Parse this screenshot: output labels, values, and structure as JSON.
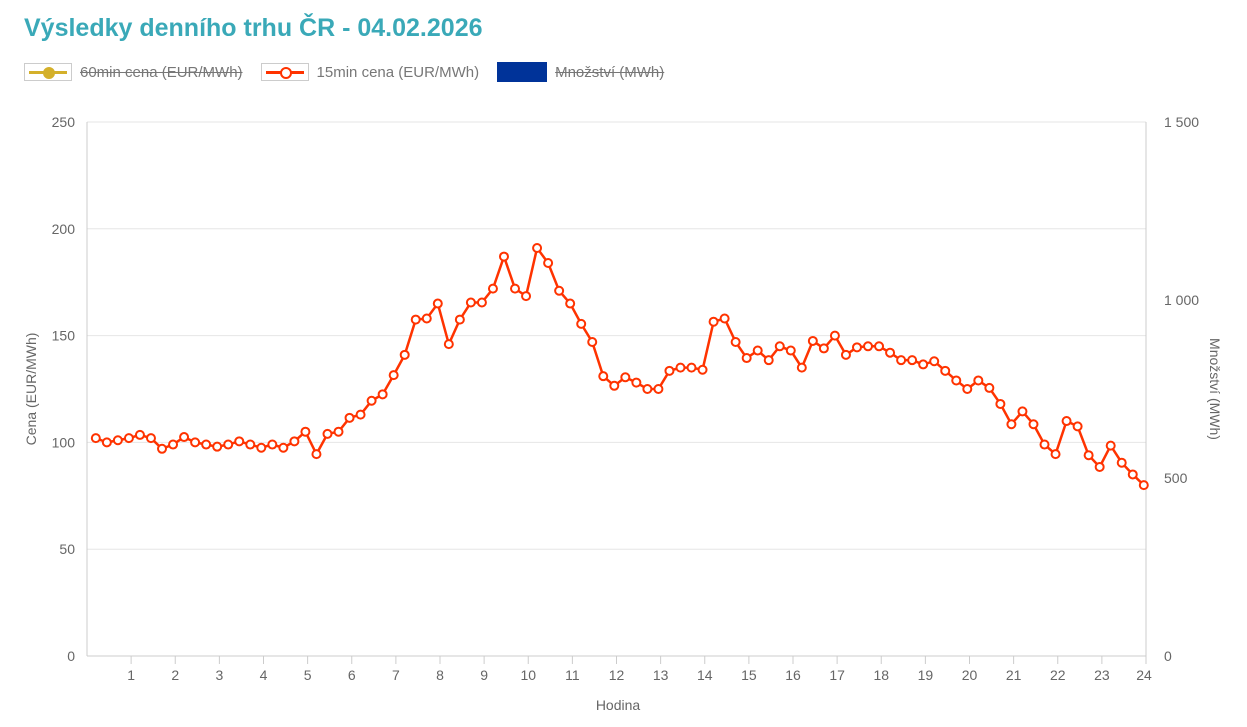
{
  "title": "Výsledky denního trhu ČR - 04.02.2026",
  "legend": [
    {
      "label": "60min cena (EUR/MWh)",
      "color": "#d4b02a",
      "hidden": true
    },
    {
      "label": "15min cena (EUR/MWh)",
      "color": "#ff3300",
      "hidden": false
    },
    {
      "label": "Množství (MWh)",
      "color": "#003399",
      "hidden": true
    }
  ],
  "chart_data": {
    "type": "line",
    "title": "Výsledky denního trhu ČR - 04.02.2026",
    "xlabel": "Hodina",
    "ylabel": "Cena (EUR/MWh)",
    "y2label": "Množství (MWh)",
    "xlim": [
      0,
      24
    ],
    "ylim": [
      0,
      250
    ],
    "y2lim": [
      0,
      1500
    ],
    "xticks": [
      "1",
      "2",
      "3",
      "4",
      "5",
      "6",
      "7",
      "8",
      "9",
      "10",
      "11",
      "12",
      "13",
      "14",
      "15",
      "16",
      "17",
      "18",
      "19",
      "20",
      "21",
      "22",
      "23",
      "24"
    ],
    "yticks": [
      "0",
      "50",
      "100",
      "150",
      "200",
      "250"
    ],
    "y2ticks": [
      "0",
      "500",
      "1 000",
      "1 500"
    ],
    "series": [
      {
        "name": "15min cena (EUR/MWh)",
        "color": "#ff3300",
        "values": [
          102,
          100,
          101,
          102,
          103.5,
          102,
          97,
          99,
          102.5,
          100,
          99,
          98,
          99,
          100.5,
          99,
          97.5,
          99,
          97.5,
          100.5,
          105,
          94.5,
          104,
          105,
          111.5,
          113,
          119.5,
          122.5,
          131.5,
          141,
          157.5,
          158,
          165,
          146,
          157.5,
          165.5,
          165.5,
          172,
          187,
          172,
          168.5,
          191,
          184,
          171,
          165,
          155.5,
          147,
          131,
          126.5,
          130.5,
          128,
          125,
          125,
          133.5,
          135,
          135,
          134,
          156.5,
          158,
          147,
          139.5,
          143,
          138.5,
          145,
          143,
          135,
          147.5,
          144,
          150,
          141,
          144.5,
          145,
          145,
          142,
          138.5,
          138.5,
          136.5,
          138,
          133.5,
          129,
          125,
          129,
          125.5,
          118,
          108.5,
          114.5,
          108.5,
          99,
          94.5,
          110,
          107.5,
          94,
          88.5,
          98.5,
          90.5,
          85,
          80
        ]
      }
    ]
  }
}
